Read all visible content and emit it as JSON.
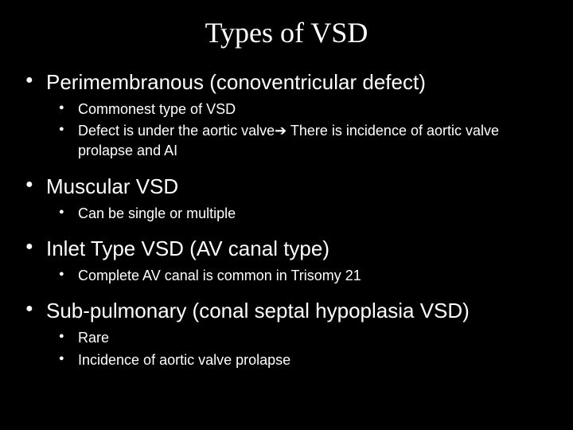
{
  "title": "Types of VSD",
  "items": [
    {
      "heading": "Perimembranous (conoventricular defect)",
      "sub": [
        "Commonest type of VSD",
        "Defect is under the aortic valve➔ There is incidence of aortic valve prolapse and AI"
      ]
    },
    {
      "heading": "Muscular VSD",
      "sub": [
        "Can be single or multiple"
      ]
    },
    {
      "heading": "Inlet Type VSD (AV canal type)",
      "sub": [
        "Complete AV canal is common in Trisomy 21"
      ]
    },
    {
      "heading": "Sub-pulmonary (conal septal hypoplasia VSD)",
      "sub": [
        "Rare",
        "Incidence of aortic valve prolapse"
      ]
    }
  ],
  "colors": {
    "background": "#000000",
    "text": "#ffffff"
  },
  "fonts": {
    "title_family": "Times New Roman",
    "body_family": "Arial",
    "title_size_pt": 36,
    "lvl1_size_pt": 26,
    "lvl2_size_pt": 18
  }
}
